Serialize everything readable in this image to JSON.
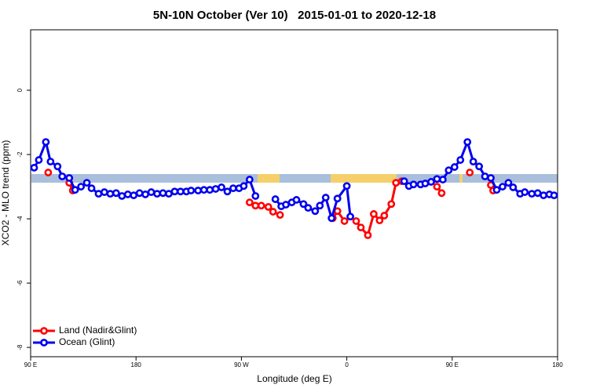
{
  "chart_data": {
    "type": "line",
    "title": "5N-10N October (Ver 10)   2015-01-01 to 2020-12-18",
    "x_label": "Longitude (deg E)",
    "y_label": "XCO2 - MLO trend (ppm)",
    "xlim": [
      90,
      540
    ],
    "ylim": [
      -8.29,
      1.88
    ],
    "xticks": [
      {
        "value": 90,
        "label": "90 E"
      },
      180,
      {
        "value": 270,
        "label": "90 W"
      },
      {
        "value": 360,
        "label": "0"
      },
      {
        "value": 450,
        "label": "90 E"
      },
      {
        "value": 540,
        "label": "180"
      }
    ],
    "yticks": [
      0,
      -2,
      -4,
      -6,
      -8
    ],
    "legend": "bottom-left",
    "series": [
      {
        "name": "Land (Nadir&Glint)",
        "color": "#ff0000",
        "x": [
          105,
          null,
          123,
          126,
          null,
          277,
          282,
          287,
          293,
          297,
          303,
          null,
          348,
          352,
          358,
          null,
          368,
          372,
          378,
          383,
          388,
          392,
          398,
          402,
          407,
          null,
          437,
          441,
          null,
          465,
          null,
          483,
          485
        ],
        "values": [
          -2.56,
          null,
          -2.88,
          -3.12,
          null,
          -3.49,
          -3.59,
          -3.59,
          -3.63,
          -3.78,
          -3.88,
          null,
          -3.98,
          -3.76,
          -4.07,
          null,
          -4.07,
          -4.27,
          -4.51,
          -3.85,
          -4.05,
          -3.9,
          -3.54,
          -2.88,
          -2.83,
          null,
          -3.0,
          -3.2,
          null,
          -2.56,
          null,
          -2.95,
          -3.12
        ]
      },
      {
        "name": "Ocean (Glint)",
        "color": "#0000ee",
        "x": [
          93,
          97,
          103,
          107,
          113,
          117,
          123,
          128,
          133,
          138,
          142,
          148,
          153,
          158,
          163,
          168,
          173,
          178,
          183,
          188,
          193,
          198,
          203,
          208,
          213,
          218,
          223,
          227,
          233,
          238,
          243,
          248,
          253,
          258,
          263,
          268,
          272,
          277,
          282,
          null,
          299,
          304,
          308,
          313,
          317,
          323,
          327,
          333,
          337,
          342,
          347,
          352,
          360,
          363,
          null,
          409,
          413,
          417,
          423,
          427,
          432,
          437,
          442,
          447,
          452,
          457,
          463,
          468,
          473,
          478,
          483,
          488,
          493,
          498,
          502,
          508,
          512,
          518,
          523,
          528,
          533,
          537
        ],
        "values": [
          -2.41,
          -2.17,
          -1.61,
          -2.22,
          -2.37,
          -2.68,
          -2.73,
          -3.1,
          -3.0,
          -2.88,
          -3.05,
          -3.22,
          -3.17,
          -3.22,
          -3.2,
          -3.29,
          -3.24,
          -3.27,
          -3.2,
          -3.24,
          -3.17,
          -3.22,
          -3.2,
          -3.22,
          -3.15,
          -3.15,
          -3.15,
          -3.12,
          -3.12,
          -3.1,
          -3.1,
          -3.07,
          -3.02,
          -3.15,
          -3.05,
          -3.05,
          -2.98,
          -2.78,
          -3.29,
          null,
          -3.39,
          -3.61,
          -3.56,
          -3.49,
          -3.41,
          -3.54,
          -3.66,
          -3.76,
          -3.59,
          -3.34,
          -3.98,
          -3.37,
          -2.98,
          -3.93,
          null,
          -2.83,
          -2.98,
          -2.93,
          -2.93,
          -2.9,
          -2.85,
          -2.76,
          -2.78,
          -2.49,
          -2.39,
          -2.17,
          -1.61,
          -2.22,
          -2.37,
          -2.68,
          -2.73,
          -3.1,
          -3.0,
          -2.88,
          -3.02,
          -3.22,
          -3.17,
          -3.22,
          -3.2,
          -3.27,
          -3.24,
          -3.27
        ]
      }
    ]
  }
}
